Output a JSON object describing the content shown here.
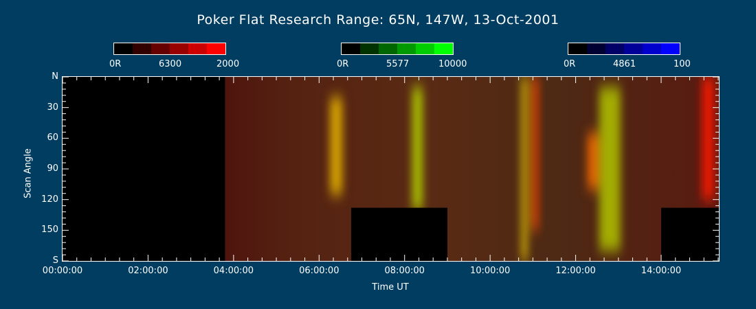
{
  "chart_data": {
    "type": "heatmap",
    "title": "Poker Flat Research Range: 65N, 147W, 13-Oct-2001",
    "xlabel": "Time UT",
    "ylabel": "Scan Angle",
    "x_range_hours": [
      0,
      15.35
    ],
    "y_range": [
      0,
      180
    ],
    "x_ticks": [
      "00:00:00",
      "02:00:00",
      "04:00:00",
      "06:00:00",
      "08:00:00",
      "10:00:00",
      "12:00:00",
      "14:00:00"
    ],
    "x_tick_hours": [
      0,
      2,
      4,
      6,
      8,
      10,
      12,
      14
    ],
    "y_ticks": [
      "N",
      "30",
      "60",
      "90",
      "120",
      "150",
      "S"
    ],
    "y_tick_values": [
      0,
      30,
      60,
      90,
      120,
      150,
      180
    ],
    "colorbars": [
      {
        "name": "6300",
        "min_label": "0R",
        "max_label": "2000",
        "color": "#ff0000",
        "steps": [
          "#000000",
          "#330000",
          "#660000",
          "#990000",
          "#cc0000",
          "#ff0000"
        ]
      },
      {
        "name": "5577",
        "min_label": "0R",
        "max_label": "10000",
        "color": "#00ff00",
        "steps": [
          "#000000",
          "#003300",
          "#006600",
          "#009900",
          "#00cc00",
          "#00ff00"
        ]
      },
      {
        "name": "4861",
        "min_label": "0R",
        "max_label": "100",
        "color": "#0000ff",
        "steps": [
          "#000000",
          "#000033",
          "#000066",
          "#000099",
          "#0000cc",
          "#0000ff"
        ]
      }
    ],
    "no_data_regions": [
      {
        "t_start": 0.0,
        "t_end": 3.8,
        "angle_start": 0,
        "angle_end": 180
      },
      {
        "t_start": 6.75,
        "t_end": 9.0,
        "angle_start": 128,
        "angle_end": 180
      },
      {
        "t_start": 14.0,
        "t_end": 15.35,
        "angle_start": 128,
        "angle_end": 180
      }
    ],
    "emission_features": [
      {
        "t": 6.4,
        "width": 0.3,
        "angle_start": 20,
        "angle_end": 115,
        "color": "#e6b400"
      },
      {
        "t": 8.3,
        "width": 0.25,
        "angle_start": 10,
        "angle_end": 130,
        "color": "#b5d400"
      },
      {
        "t": 10.8,
        "width": 0.12,
        "angle_start": 0,
        "angle_end": 180,
        "color": "#ffe000"
      },
      {
        "t": 11.05,
        "width": 0.15,
        "angle_start": 0,
        "angle_end": 150,
        "color": "#ff4a00"
      },
      {
        "t": 12.4,
        "width": 0.25,
        "angle_start": 55,
        "angle_end": 110,
        "color": "#ff7000"
      },
      {
        "t": 12.8,
        "width": 0.5,
        "angle_start": 10,
        "angle_end": 170,
        "color": "#b0c400"
      },
      {
        "t": 15.1,
        "width": 0.3,
        "angle_start": 0,
        "angle_end": 120,
        "color": "#ff1800"
      }
    ]
  }
}
